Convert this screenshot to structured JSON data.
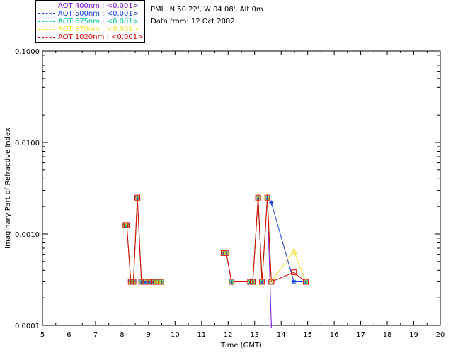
{
  "legend": [
    {
      "label": "AOT  400nm : <0.001>",
      "color": "#7a0fd8",
      "marker": "plus"
    },
    {
      "label": "AOT  500nm : <0.001>",
      "color": "#1040e0",
      "marker": "star"
    },
    {
      "label": "AOT  675nm : <0.001>",
      "color": "#00c890",
      "marker": "diamond"
    },
    {
      "label": "AOT  870nm : <0.001>",
      "color": "#f0e020",
      "marker": "triangle"
    },
    {
      "label": "AOT 1020nm : <0.001>",
      "color": "#e00000",
      "marker": "square"
    }
  ],
  "info": {
    "location": "PML, N 50 22', W 04 08', Alt 0m",
    "date": "Data from: 12 Oct 2002"
  },
  "chart_data": {
    "type": "scatter",
    "title": "",
    "xlabel": "Time (GMT)",
    "ylabel": "Imaginary Part of Refractive Index",
    "xlim": [
      5,
      20
    ],
    "ylim": [
      0.0001,
      0.1
    ],
    "yscale": "log",
    "x_ticks": [
      "5",
      "6",
      "7",
      "8",
      "9",
      "10",
      "11",
      "12",
      "13",
      "14",
      "15",
      "16",
      "17",
      "18",
      "19",
      "20"
    ],
    "y_ticks": [
      "0.0001",
      "0.0010",
      "0.0100",
      "0.1000"
    ],
    "y_tick_values": [
      0.0001,
      0.001,
      0.01,
      0.1
    ],
    "grid": false,
    "series": [
      {
        "name": "AOT  400nm : <0.001>",
        "x": [
          8.13,
          8.18,
          8.33,
          8.43,
          8.58,
          8.73,
          8.88,
          9.03,
          9.18,
          9.28,
          9.38,
          9.48,
          11.83,
          11.93,
          12.13,
          12.83,
          12.93,
          13.13,
          13.28,
          13.48,
          13.63
        ],
        "y": [
          0.00125,
          0.00125,
          0.0003,
          0.0003,
          0.0025,
          0.0003,
          0.0003,
          0.0003,
          0.0003,
          0.0003,
          0.0003,
          0.0003,
          0.00062,
          0.00062,
          0.0003,
          0.0003,
          0.0003,
          0.0025,
          0.0003,
          0.0025,
          0.0001
        ]
      },
      {
        "name": "AOT  500nm : <0.001>",
        "x": [
          8.13,
          8.18,
          8.33,
          8.43,
          8.58,
          8.73,
          8.88,
          9.03,
          9.18,
          9.28,
          9.38,
          9.48,
          11.83,
          11.93,
          12.13,
          12.83,
          12.93,
          13.13,
          13.28,
          13.48,
          13.63,
          14.48,
          14.93
        ],
        "y": [
          0.00125,
          0.00125,
          0.0003,
          0.0003,
          0.0025,
          0.0003,
          0.0003,
          0.0003,
          0.0003,
          0.0003,
          0.0003,
          0.0003,
          0.00062,
          0.00062,
          0.0003,
          0.0003,
          0.0003,
          0.0025,
          0.0003,
          0.0025,
          0.0022,
          0.0003,
          0.0003
        ]
      },
      {
        "name": "AOT  675nm : <0.001>",
        "x": [
          8.13,
          8.18,
          8.33,
          8.43,
          8.58,
          8.73,
          8.88,
          9.03,
          9.18,
          9.28,
          9.38,
          9.48,
          11.83,
          11.93,
          12.13,
          12.83,
          12.93,
          13.13,
          13.28,
          13.48,
          13.63,
          14.93
        ],
        "y": [
          0.00125,
          0.00125,
          0.0003,
          0.0003,
          0.0025,
          0.0003,
          0.0003,
          0.0003,
          0.0003,
          0.0003,
          0.0003,
          0.0003,
          0.00062,
          0.00062,
          0.0003,
          0.0003,
          0.0003,
          0.0025,
          0.0003,
          0.0025,
          0.0003,
          0.0003
        ]
      },
      {
        "name": "AOT  870nm : <0.001>",
        "x": [
          8.13,
          8.18,
          8.33,
          8.43,
          8.58,
          8.73,
          8.88,
          9.03,
          9.18,
          9.28,
          9.38,
          9.48,
          11.83,
          11.93,
          12.13,
          12.83,
          12.93,
          13.13,
          13.28,
          13.48,
          13.63,
          14.48,
          14.93
        ],
        "y": [
          0.00125,
          0.00125,
          0.0003,
          0.0003,
          0.0025,
          0.0003,
          0.0003,
          0.0003,
          0.0003,
          0.0003,
          0.0003,
          0.0003,
          0.00062,
          0.00062,
          0.0003,
          0.0003,
          0.0003,
          0.0025,
          0.0003,
          0.0025,
          0.0003,
          0.00065,
          0.0003
        ]
      },
      {
        "name": "AOT 1020nm : <0.001>",
        "x": [
          8.13,
          8.18,
          8.33,
          8.43,
          8.58,
          8.73,
          8.88,
          9.03,
          9.18,
          9.28,
          9.38,
          9.48,
          11.83,
          11.93,
          12.13,
          12.83,
          12.93,
          13.13,
          13.28,
          13.48,
          13.63,
          14.48,
          14.93
        ],
        "y": [
          0.00125,
          0.00125,
          0.0003,
          0.0003,
          0.0025,
          0.0003,
          0.0003,
          0.0003,
          0.0003,
          0.0003,
          0.0003,
          0.0003,
          0.00062,
          0.00062,
          0.0003,
          0.0003,
          0.0003,
          0.0025,
          0.0003,
          0.0025,
          0.0003,
          0.00038,
          0.0003
        ]
      }
    ]
  }
}
